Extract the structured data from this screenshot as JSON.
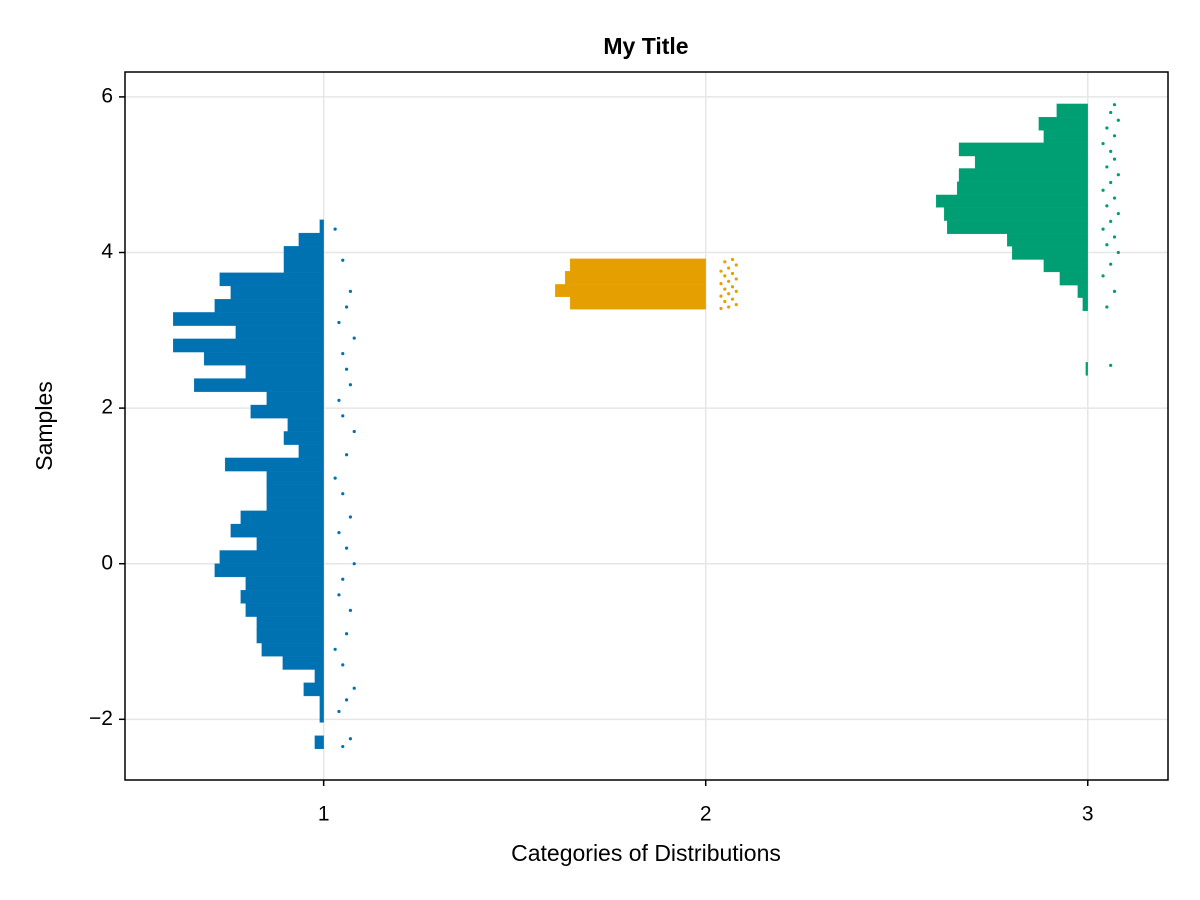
{
  "chart_data": {
    "type": "raincloud",
    "title": "My Title",
    "x_label": "Categories of Distributions",
    "y_label": "Samples",
    "xlim": [
      0.48,
      3.21
    ],
    "xticks": [
      1,
      2,
      3
    ],
    "ylim": [
      -2.78,
      6.32
    ],
    "yticks": [
      {
        "value": -2,
        "label": "−2"
      },
      0,
      2,
      4,
      6
    ],
    "grid": true,
    "series": [
      {
        "color": "#0072b2",
        "bins": [
          -2.38,
          -2.21,
          -2.04,
          -1.87,
          -1.7,
          -1.53,
          -1.36,
          -1.19,
          -1.02,
          -0.85,
          -0.68,
          -0.51,
          -0.34,
          -0.17,
          0.0,
          0.17,
          0.34,
          0.51,
          0.68,
          0.85,
          1.02,
          1.19,
          1.36,
          1.53,
          1.7,
          1.87,
          2.04,
          2.21,
          2.38,
          2.55,
          2.72,
          2.89,
          3.06,
          3.23,
          3.4,
          3.57,
          3.74,
          3.91,
          4.08,
          4.25,
          4.42
        ],
        "values": [
          0.023,
          0,
          0.01,
          0.01,
          0.052,
          0.023,
          0.107,
          0.162,
          0.175,
          0.175,
          0.204,
          0.217,
          0.204,
          0.285,
          0.272,
          0.175,
          0.243,
          0.217,
          0.149,
          0.149,
          0.149,
          0.258,
          0.065,
          0.104,
          0.094,
          0.191,
          0.149,
          0.339,
          0.204,
          0.313,
          0.394,
          0.23,
          0.394,
          0.285,
          0.243,
          0.272,
          0.104,
          0.104,
          0.065,
          0.01
        ],
        "scatter_x": [
          1.05,
          1.07,
          1.04,
          1.06,
          1.08,
          1.05,
          1.03,
          1.06,
          1.07,
          1.04,
          1.05,
          1.08,
          1.06,
          1.04,
          1.07,
          1.05,
          1.03,
          1.06,
          1.08,
          1.05,
          1.04,
          1.07,
          1.06,
          1.05,
          1.08,
          1.04,
          1.06,
          1.07,
          1.05,
          1.03
        ],
        "scatter_y": [
          -2.35,
          -2.25,
          -1.9,
          -1.75,
          -1.6,
          -1.3,
          -1.1,
          -0.9,
          -0.6,
          -0.4,
          -0.2,
          0.0,
          0.2,
          0.4,
          0.6,
          0.9,
          1.1,
          1.4,
          1.7,
          1.9,
          2.1,
          2.3,
          2.5,
          2.7,
          2.9,
          3.1,
          3.3,
          3.5,
          3.9,
          4.3
        ]
      },
      {
        "color": "#e69f00",
        "bins": [
          3.27,
          3.43,
          3.59,
          3.76,
          3.92
        ],
        "values": [
          0.355,
          0.394,
          0.368,
          0.355
        ],
        "scatter_x": [
          2.04,
          2.06,
          2.08,
          2.05,
          2.07,
          2.04,
          2.06,
          2.08,
          2.05,
          2.07,
          2.04,
          2.06,
          2.08,
          2.05,
          2.07,
          2.04,
          2.06,
          2.08,
          2.05,
          2.07
        ],
        "scatter_y": [
          3.28,
          3.3,
          3.33,
          3.37,
          3.4,
          3.44,
          3.47,
          3.5,
          3.53,
          3.56,
          3.6,
          3.63,
          3.66,
          3.7,
          3.73,
          3.76,
          3.8,
          3.84,
          3.88,
          3.91
        ]
      },
      {
        "color": "#009e73",
        "bins": [
          2.42,
          2.59,
          2.75,
          2.92,
          3.08,
          3.25,
          3.42,
          3.58,
          3.75,
          3.91,
          4.08,
          4.24,
          4.41,
          4.58,
          4.74,
          4.91,
          5.08,
          5.24,
          5.41,
          5.57,
          5.74,
          5.91
        ],
        "values": [
          0.005,
          0,
          0,
          0,
          0,
          0.013,
          0.026,
          0.073,
          0.115,
          0.198,
          0.211,
          0.368,
          0.376,
          0.397,
          0.342,
          0.337,
          0.295,
          0.337,
          0.115,
          0.128,
          0.081
        ],
        "scatter_x": [
          3.06,
          3.05,
          3.07,
          3.04,
          3.06,
          3.08,
          3.05,
          3.07,
          3.04,
          3.06,
          3.08,
          3.05,
          3.07,
          3.04,
          3.06,
          3.08,
          3.05,
          3.07,
          3.06,
          3.04,
          3.07,
          3.05,
          3.08,
          3.06,
          3.07
        ],
        "scatter_y": [
          2.55,
          3.3,
          3.5,
          3.7,
          3.85,
          4.0,
          4.1,
          4.2,
          4.3,
          4.4,
          4.5,
          4.6,
          4.7,
          4.8,
          4.9,
          5.0,
          5.1,
          5.2,
          5.3,
          5.4,
          5.5,
          5.6,
          5.7,
          5.8,
          5.9
        ]
      }
    ]
  }
}
